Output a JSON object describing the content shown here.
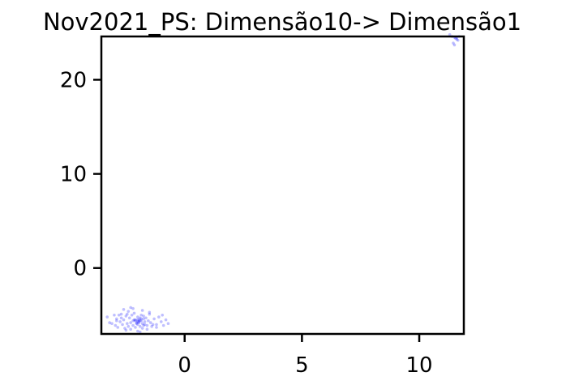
{
  "chart_data": {
    "type": "scatter",
    "title": "Nov2021_PS: Dimensão10-> Dimensão1",
    "xlabel": "",
    "ylabel": "",
    "xlim": [
      -3.55,
      11.9
    ],
    "ylim": [
      -7.0,
      24.6
    ],
    "xticks": [
      0,
      5,
      10
    ],
    "xtick_labels": [
      "0",
      "5",
      "10"
    ],
    "yticks": [
      0,
      10,
      20
    ],
    "ytick_labels": [
      "0",
      "10",
      "20"
    ],
    "grid": false,
    "legend": "none",
    "point_color": "#0000ff",
    "point_alpha": 0.25,
    "series": [
      {
        "values_x": [
          -3.3,
          -3.2,
          -3.0,
          -2.95,
          -2.9,
          -2.85,
          -2.8,
          -2.75,
          -2.7,
          -2.65,
          -2.6,
          -2.55,
          -2.5,
          -2.45,
          -2.4,
          -2.4,
          -2.35,
          -2.3,
          -2.3,
          -2.25,
          -2.2,
          -2.2,
          -2.15,
          -2.1,
          -2.1,
          -2.05,
          -2.0,
          -2.0,
          -2.0,
          -1.95,
          -1.95,
          -1.9,
          -1.9,
          -1.85,
          -1.85,
          -1.8,
          -1.8,
          -1.75,
          -1.75,
          -1.7,
          -1.7,
          -1.65,
          -1.6,
          -1.55,
          -1.5,
          -1.45,
          -1.4,
          -1.3,
          -1.2,
          -1.1,
          -1.0,
          -0.9,
          -0.8,
          -0.7,
          -2.6,
          -2.5,
          -2.2,
          -2.0,
          -1.8,
          -1.6,
          -2.9,
          -2.3,
          -1.9,
          -1.5,
          -1.2,
          -2.1,
          -2.0,
          -1.95,
          -2.05,
          -1.9,
          -1.85,
          -2.15,
          -2.7,
          -3.1,
          -0.95,
          -1.35,
          -2.45,
          -1.75,
          11.3,
          11.4,
          11.5,
          11.55,
          11.6,
          11.6,
          11.65,
          11.7,
          11.45,
          11.5
        ],
        "values_y": [
          -5.2,
          -5.8,
          -5.0,
          -6.1,
          -5.4,
          -6.3,
          -5.0,
          -5.7,
          -4.9,
          -6.0,
          -5.5,
          -6.4,
          -5.1,
          -5.9,
          -4.6,
          -6.2,
          -5.3,
          -5.8,
          -6.5,
          -5.0,
          -5.6,
          -6.1,
          -4.8,
          -5.5,
          -6.3,
          -5.9,
          -5.2,
          -5.7,
          -6.0,
          -5.5,
          -5.8,
          -5.3,
          -6.2,
          -5.6,
          -5.0,
          -5.9,
          -6.4,
          -5.4,
          -5.1,
          -6.0,
          -5.7,
          -5.3,
          -6.1,
          -5.6,
          -4.9,
          -5.8,
          -6.2,
          -5.4,
          -6.0,
          -5.2,
          -5.7,
          -6.1,
          -5.5,
          -5.9,
          -4.4,
          -6.6,
          -4.3,
          -6.7,
          -4.5,
          -6.5,
          -5.6,
          -4.2,
          -6.8,
          -4.7,
          -6.3,
          -5.6,
          -5.5,
          -5.7,
          -5.8,
          -5.6,
          -5.4,
          -5.5,
          -5.3,
          -5.9,
          -5.0,
          -6.0,
          -4.9,
          -6.1,
          24.8,
          24.6,
          24.5,
          24.4,
          24.3,
          24.5,
          24.2,
          24.6,
          23.9,
          23.7
        ]
      }
    ]
  }
}
